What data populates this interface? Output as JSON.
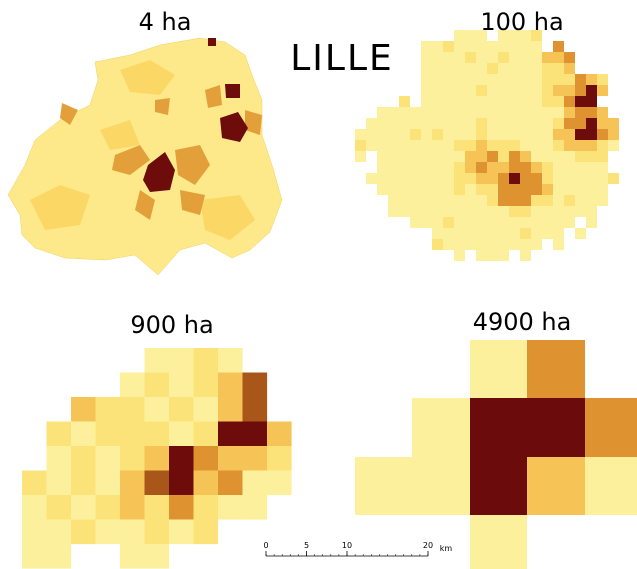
{
  "header": {
    "title": "LILLE"
  },
  "maps": [
    {
      "label": "4 ha"
    },
    {
      "label": "100 ha"
    },
    {
      "label": "900 ha"
    },
    {
      "label": "4900 ha"
    }
  ],
  "scale_bar": {
    "ticks": [
      0,
      5,
      10,
      20
    ],
    "unit": "km"
  }
}
